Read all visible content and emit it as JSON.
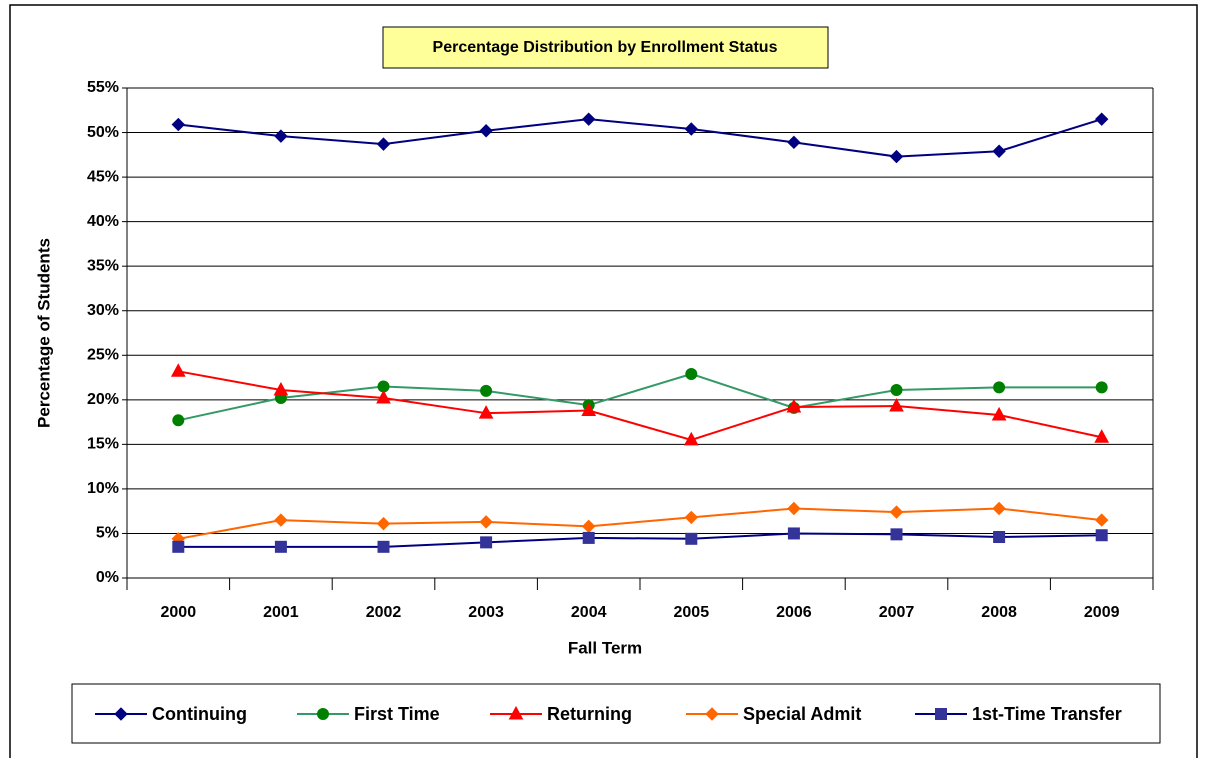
{
  "chart_data": {
    "type": "line",
    "title": "Percentage Distribution by Enrollment Status",
    "x_label": "Fall Term",
    "y_label": "Percentage of Students",
    "categories": [
      "2000",
      "2001",
      "2002",
      "2003",
      "2004",
      "2005",
      "2006",
      "2007",
      "2008",
      "2009"
    ],
    "ylim": [
      0,
      55
    ],
    "yticks": [
      {
        "value": 0,
        "label": "0%"
      },
      {
        "value": 5,
        "label": "5%"
      },
      {
        "value": 10,
        "label": "10%"
      },
      {
        "value": 15,
        "label": "15%"
      },
      {
        "value": 20,
        "label": "20%"
      },
      {
        "value": 25,
        "label": "25%"
      },
      {
        "value": 30,
        "label": "30%"
      },
      {
        "value": 35,
        "label": "35%"
      },
      {
        "value": 40,
        "label": "40%"
      },
      {
        "value": 45,
        "label": "45%"
      },
      {
        "value": 50,
        "label": "50%"
      },
      {
        "value": 55,
        "label": "55%"
      }
    ],
    "grid": true,
    "legend": "bottom",
    "series": [
      {
        "name": "Continuing",
        "color": "#000080",
        "marker": "diamond",
        "values": [
          50.9,
          49.6,
          48.7,
          50.2,
          51.5,
          50.4,
          48.9,
          47.3,
          47.9,
          51.5
        ]
      },
      {
        "name": "First Time",
        "color": "#339966",
        "marker_color": "#008000",
        "marker": "circle",
        "values": [
          17.7,
          20.2,
          21.5,
          21.0,
          19.4,
          22.9,
          19.1,
          21.1,
          21.4,
          21.4
        ]
      },
      {
        "name": "Returning",
        "color": "#ff0000",
        "marker": "triangle",
        "values": [
          23.2,
          21.1,
          20.2,
          18.5,
          18.8,
          15.5,
          19.2,
          19.3,
          18.3,
          15.8
        ]
      },
      {
        "name": "Special Admit",
        "color": "#ff6600",
        "marker_color": "#ff6600",
        "marker": "diamond",
        "values": [
          4.4,
          6.5,
          6.1,
          6.3,
          5.8,
          6.8,
          7.8,
          7.4,
          7.8,
          6.5
        ]
      },
      {
        "name": "1st-Time Transfer",
        "color": "#000080",
        "marker_color": "#333399",
        "marker": "square",
        "values": [
          3.5,
          3.5,
          3.5,
          4.0,
          4.5,
          4.4,
          5.0,
          4.9,
          4.6,
          4.8
        ]
      }
    ]
  }
}
